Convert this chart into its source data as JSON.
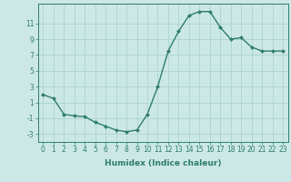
{
  "x": [
    0,
    1,
    2,
    3,
    4,
    5,
    6,
    7,
    8,
    9,
    10,
    11,
    12,
    13,
    14,
    15,
    16,
    17,
    18,
    19,
    20,
    21,
    22,
    23
  ],
  "y": [
    2,
    1.5,
    -0.5,
    -0.7,
    -0.8,
    -1.5,
    -2.0,
    -2.5,
    -2.7,
    -2.5,
    -0.5,
    3.0,
    7.5,
    10.0,
    12.0,
    12.5,
    12.5,
    10.5,
    9.0,
    9.2,
    8.0,
    7.5,
    7.5,
    7.5
  ],
  "line_color": "#2e7d6e",
  "marker_color": "#2e7d6e",
  "bg_color": "#cce8e6",
  "grid_color": "#aad4d0",
  "xlabel": "Humidex (Indice chaleur)",
  "yticks": [
    -3,
    -1,
    1,
    3,
    5,
    7,
    9,
    11
  ],
  "xticks": [
    0,
    1,
    2,
    3,
    4,
    5,
    6,
    7,
    8,
    9,
    10,
    11,
    12,
    13,
    14,
    15,
    16,
    17,
    18,
    19,
    20,
    21,
    22,
    23
  ],
  "xlim": [
    -0.5,
    23.5
  ],
  "ylim": [
    -4.0,
    13.5
  ],
  "tick_fontsize": 5.5,
  "label_fontsize": 6.5
}
